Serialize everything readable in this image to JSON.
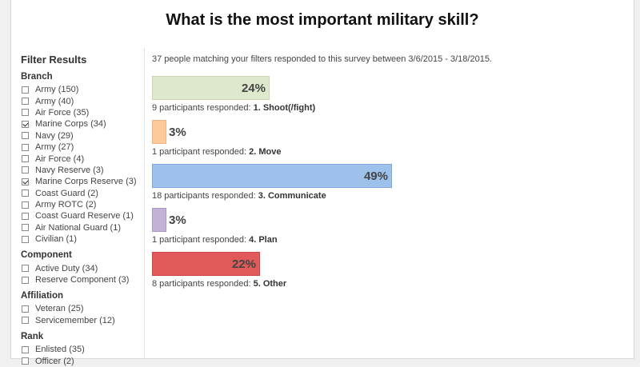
{
  "title": "What is the most important military skill?",
  "summary": "37 people matching your filters responded to this survey between 3/6/2015 - 3/18/2015.",
  "filters": {
    "heading": "Filter Results",
    "groups": [
      {
        "label": "Branch",
        "options": [
          {
            "label": "Army (150)",
            "checked": false
          },
          {
            "label": "Army (40)",
            "checked": false
          },
          {
            "label": "Air Force (35)",
            "checked": false
          },
          {
            "label": "Marine Corps (34)",
            "checked": true
          },
          {
            "label": "Navy (29)",
            "checked": false
          },
          {
            "label": "Army (27)",
            "checked": false
          },
          {
            "label": "Air Force (4)",
            "checked": false
          },
          {
            "label": "Navy Reserve (3)",
            "checked": false
          },
          {
            "label": "Marine Corps Reserve (3)",
            "checked": true
          },
          {
            "label": "Coast Guard (2)",
            "checked": false
          },
          {
            "label": "Army ROTC (2)",
            "checked": false
          },
          {
            "label": "Coast Guard Reserve (1)",
            "checked": false
          },
          {
            "label": "Air National Guard (1)",
            "checked": false
          },
          {
            "label": "Civilian (1)",
            "checked": false
          }
        ]
      },
      {
        "label": "Component",
        "options": [
          {
            "label": "Active Duty (34)",
            "checked": false
          },
          {
            "label": "Reserve Component (3)",
            "checked": false
          }
        ]
      },
      {
        "label": "Affiliation",
        "options": [
          {
            "label": "Veteran (25)",
            "checked": false
          },
          {
            "label": "Servicemember (12)",
            "checked": false
          }
        ]
      },
      {
        "label": "Rank",
        "options": [
          {
            "label": "Enlisted (35)",
            "checked": false
          },
          {
            "label": "Officer (2)",
            "checked": false
          }
        ]
      }
    ]
  },
  "chart_data": {
    "type": "bar",
    "categories": [
      "1. Shoot(/fight)",
      "2. Move",
      "3. Communicate",
      "4. Plan",
      "5. Other"
    ],
    "values": [
      24,
      3,
      49,
      3,
      22
    ],
    "value_labels": [
      "24%",
      "3%",
      "49%",
      "3%",
      "22%"
    ],
    "response_prefixes": [
      "9 participants responded:",
      "1 participant responded:",
      "18 participants responded:",
      "1 participant responded:",
      "8 participants responded:"
    ],
    "colors": [
      "#dde8cc",
      "#fccb9c",
      "#9dc1ea",
      "#c2b3d6",
      "#e05a5a"
    ],
    "border_colors": [
      "#c9d8b1",
      "#f2b47f",
      "#7ea9dc",
      "#ab99c6",
      "#cc4444"
    ]
  }
}
